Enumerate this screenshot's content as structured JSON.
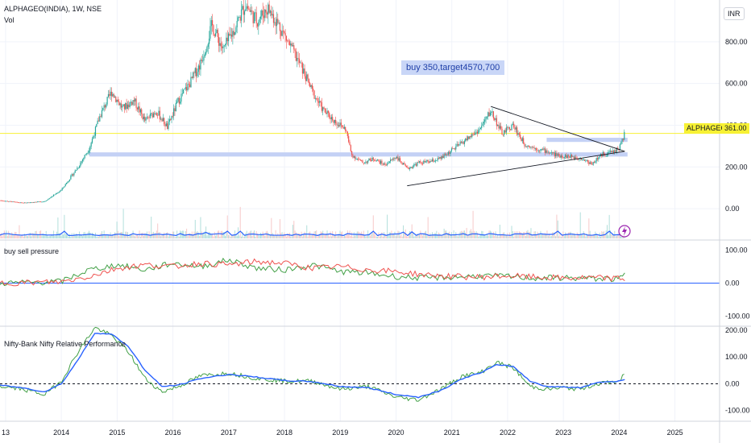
{
  "header": {
    "symbol_title": "ALPHAGEO(INDIA), 1W, NSE",
    "vol_label": "Vol",
    "currency": "INR"
  },
  "price_tag": {
    "symbol": "ALPHAGEO",
    "value": "361.00",
    "color": "#f7f134"
  },
  "annotation": {
    "text": "buy 350,target4570,700"
  },
  "icons": {
    "lightning": "lightning-icon"
  },
  "colors": {
    "up_candle": "#26a69a",
    "down_candle": "#ef5350",
    "support_band": "#c4d1f5",
    "volume_ma": "#2962ff",
    "buy_line": "#43a047",
    "sell_line": "#ef5350",
    "rel_perf_green": "#43a047",
    "rel_perf_blue": "#2962ff",
    "trendline": "#131722",
    "price_line": "#f7f134"
  },
  "chart_data": [
    {
      "type": "candlestick",
      "title": "ALPHAGEO(INDIA), 1W, NSE",
      "x_ticks": [
        "13",
        "2014",
        "2015",
        "2016",
        "2017",
        "2018",
        "2019",
        "2020",
        "2021",
        "2022",
        "2023",
        "2024",
        "2025"
      ],
      "y_ticks": [
        "0.00",
        "200.00",
        "400.00",
        "600.00",
        "800.00"
      ],
      "ylim": [
        -150,
        1000
      ],
      "xlim": [
        2012.9,
        2025.8
      ],
      "last_price": 361,
      "price_path": [
        [
          2012.9,
          40
        ],
        [
          2013.3,
          28
        ],
        [
          2013.7,
          35
        ],
        [
          2014.0,
          90
        ],
        [
          2014.3,
          200
        ],
        [
          2014.5,
          290
        ],
        [
          2014.7,
          450
        ],
        [
          2014.9,
          560
        ],
        [
          2015.1,
          480
        ],
        [
          2015.3,
          520
        ],
        [
          2015.5,
          420
        ],
        [
          2015.7,
          470
        ],
        [
          2015.9,
          390
        ],
        [
          2016.1,
          520
        ],
        [
          2016.3,
          600
        ],
        [
          2016.5,
          700
        ],
        [
          2016.7,
          880
        ],
        [
          2016.9,
          760
        ],
        [
          2017.1,
          860
        ],
        [
          2017.3,
          980
        ],
        [
          2017.5,
          900
        ],
        [
          2017.7,
          960
        ],
        [
          2017.9,
          880
        ],
        [
          2018.1,
          780
        ],
        [
          2018.3,
          680
        ],
        [
          2018.5,
          560
        ],
        [
          2018.7,
          470
        ],
        [
          2018.9,
          420
        ],
        [
          2019.1,
          380
        ],
        [
          2019.2,
          260
        ],
        [
          2019.4,
          220
        ],
        [
          2019.6,
          240
        ],
        [
          2019.8,
          210
        ],
        [
          2020.0,
          250
        ],
        [
          2020.2,
          190
        ],
        [
          2020.4,
          220
        ],
        [
          2020.6,
          225
        ],
        [
          2020.8,
          240
        ],
        [
          2021.0,
          280
        ],
        [
          2021.2,
          320
        ],
        [
          2021.5,
          380
        ],
        [
          2021.7,
          470
        ],
        [
          2021.9,
          360
        ],
        [
          2022.1,
          400
        ],
        [
          2022.3,
          310
        ],
        [
          2022.5,
          290
        ],
        [
          2022.7,
          275
        ],
        [
          2022.9,
          255
        ],
        [
          2023.1,
          250
        ],
        [
          2023.3,
          245
        ],
        [
          2023.5,
          215
        ],
        [
          2023.7,
          260
        ],
        [
          2023.9,
          275
        ],
        [
          2024.0,
          290
        ],
        [
          2024.1,
          361
        ]
      ],
      "support_zones": [
        {
          "from_x": 2014.5,
          "to_x": 2024.15,
          "low": 250,
          "high": 270
        },
        {
          "from_x": 2022.7,
          "to_x": 2024.15,
          "low": 320,
          "high": 340
        }
      ],
      "trendlines": [
        {
          "x1": 2021.7,
          "y1": 490,
          "x2": 2024.1,
          "y2": 275
        },
        {
          "x1": 2020.2,
          "y1": 110,
          "x2": 2024.1,
          "y2": 275
        }
      ]
    },
    {
      "type": "line",
      "title": "buy sell pressure",
      "y_ticks": [
        "100.00",
        "0.00",
        "-100.00"
      ],
      "ylim": [
        -130,
        130
      ],
      "xlim": [
        2012.9,
        2025.8
      ],
      "series": [
        {
          "values_x": [
            2012.9,
            2013.5,
            2014.0,
            2014.5,
            2015.0,
            2015.5,
            2016.0,
            2016.5,
            2017.0,
            2017.5,
            2018.0,
            2018.5,
            2019.0,
            2019.5,
            2020.0,
            2020.5,
            2021.0,
            2021.5,
            2022.0,
            2022.5,
            2023.0,
            2023.5,
            2024.0,
            2024.1
          ],
          "values_y": [
            0,
            2,
            5,
            40,
            55,
            40,
            60,
            50,
            70,
            45,
            40,
            55,
            35,
            30,
            20,
            15,
            18,
            22,
            20,
            15,
            16,
            14,
            12,
            25
          ]
        },
        {
          "values_x": [
            2012.9,
            2013.5,
            2014.0,
            2014.5,
            2015.0,
            2015.5,
            2016.0,
            2016.5,
            2017.0,
            2017.5,
            2018.0,
            2018.5,
            2019.0,
            2019.5,
            2020.0,
            2020.5,
            2021.0,
            2021.5,
            2022.0,
            2022.5,
            2023.0,
            2023.5,
            2024.0,
            2024.1
          ],
          "values_y": [
            0,
            2,
            4,
            20,
            45,
            55,
            50,
            60,
            55,
            65,
            60,
            45,
            50,
            40,
            35,
            25,
            20,
            18,
            22,
            18,
            15,
            16,
            14,
            12
          ]
        }
      ]
    },
    {
      "type": "line",
      "title": "Nifty-Bank Nifty Relative Performance",
      "y_ticks": [
        "200.00",
        "100.00",
        "0.00",
        "-100.00"
      ],
      "ylim": [
        -140,
        215
      ],
      "xlim": [
        2012.9,
        2025.8
      ],
      "series": [
        {
          "values_x": [
            2012.9,
            2013.3,
            2013.7,
            2014.0,
            2014.3,
            2014.6,
            2014.9,
            2015.2,
            2015.5,
            2015.8,
            2016.1,
            2016.5,
            2017.0,
            2017.5,
            2018.0,
            2018.5,
            2019.0,
            2019.5,
            2020.0,
            2020.4,
            2020.8,
            2021.2,
            2021.5,
            2021.8,
            2022.1,
            2022.4,
            2022.7,
            2023.0,
            2023.3,
            2023.6,
            2024.0,
            2024.1
          ],
          "values_y": [
            -10,
            -20,
            -40,
            10,
            120,
            210,
            180,
            120,
            20,
            -30,
            -10,
            30,
            40,
            20,
            10,
            10,
            -20,
            -10,
            -50,
            -60,
            -20,
            30,
            40,
            80,
            60,
            -10,
            -20,
            -15,
            -20,
            0,
            10,
            35
          ]
        },
        {
          "values_x": [
            2012.9,
            2013.3,
            2013.7,
            2014.0,
            2014.3,
            2014.6,
            2014.9,
            2015.2,
            2015.5,
            2015.8,
            2016.1,
            2016.5,
            2017.0,
            2017.5,
            2018.0,
            2018.5,
            2019.0,
            2019.5,
            2020.0,
            2020.4,
            2020.8,
            2021.2,
            2021.5,
            2021.8,
            2022.1,
            2022.4,
            2022.7,
            2023.0,
            2023.3,
            2023.6,
            2024.0,
            2024.1
          ],
          "values_y": [
            -5,
            -15,
            -30,
            0,
            90,
            190,
            185,
            140,
            50,
            -10,
            -5,
            20,
            35,
            25,
            12,
            8,
            -10,
            -15,
            -40,
            -50,
            -25,
            20,
            40,
            70,
            65,
            10,
            -10,
            -12,
            -15,
            5,
            10,
            15
          ]
        }
      ]
    }
  ]
}
